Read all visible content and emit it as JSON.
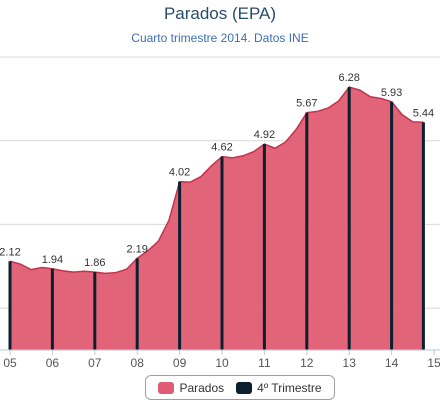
{
  "chart_data": {
    "type": "area",
    "title": "Parados (EPA)",
    "subtitle": "Cuarto trimestre 2014. Datos INE",
    "xlabel": "",
    "ylabel": "",
    "x_ticks": [
      "05",
      "06",
      "07",
      "08",
      "09",
      "10",
      "11",
      "12",
      "13",
      "14",
      "15"
    ],
    "ylim": [
      0,
      7
    ],
    "grid": true,
    "legend_position": "bottom-center",
    "series": [
      {
        "name": "Parados",
        "type": "area",
        "color": "#e05c72",
        "x": [
          2005.0,
          2005.25,
          2005.5,
          2005.75,
          2006.0,
          2006.25,
          2006.5,
          2006.75,
          2007.0,
          2007.25,
          2007.5,
          2007.75,
          2008.0,
          2008.25,
          2008.5,
          2008.75,
          2009.0,
          2009.25,
          2009.5,
          2009.75,
          2010.0,
          2010.25,
          2010.5,
          2010.75,
          2011.0,
          2011.25,
          2011.5,
          2011.75,
          2012.0,
          2012.25,
          2012.5,
          2012.75,
          2013.0,
          2013.25,
          2013.5,
          2013.75,
          2014.0,
          2014.25,
          2014.5,
          2014.75
        ],
        "values": [
          2.12,
          2.05,
          1.92,
          1.97,
          1.94,
          1.89,
          1.86,
          1.88,
          1.86,
          1.83,
          1.85,
          1.93,
          2.19,
          2.37,
          2.6,
          3.1,
          4.02,
          4.01,
          4.14,
          4.4,
          4.62,
          4.59,
          4.64,
          4.74,
          4.92,
          4.82,
          4.97,
          5.27,
          5.67,
          5.7,
          5.78,
          5.95,
          6.28,
          6.21,
          6.05,
          6.01,
          5.93,
          5.62,
          5.45,
          5.44
        ]
      },
      {
        "name": "4º Trimestre",
        "type": "column",
        "color": "#0c1f2e",
        "x": [
          2005.0,
          2006.0,
          2007.0,
          2008.0,
          2009.0,
          2010.0,
          2011.0,
          2012.0,
          2013.0,
          2014.0,
          2014.75
        ],
        "values": [
          2.12,
          1.94,
          1.86,
          2.19,
          4.02,
          4.62,
          4.92,
          5.67,
          6.28,
          5.93,
          5.44
        ],
        "labels": [
          "2.12",
          "1.94",
          "1.86",
          "2.19",
          "4.02",
          "4.62",
          "4.92",
          "5.67",
          "6.28",
          "5.93",
          "5.44"
        ]
      }
    ]
  },
  "legend": {
    "items": [
      {
        "label": "Parados",
        "color": "#e05c72"
      },
      {
        "label": "4º Trimestre",
        "color": "#0c1f2e"
      }
    ]
  }
}
